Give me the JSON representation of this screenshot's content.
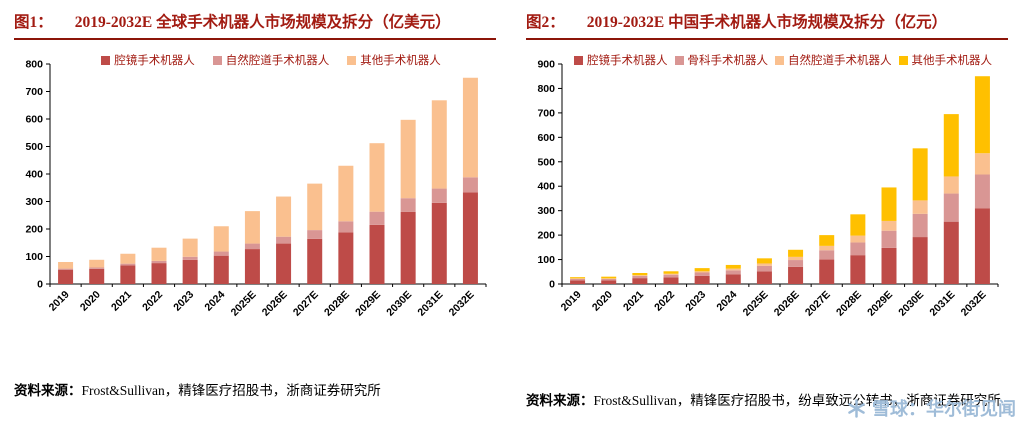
{
  "theme": {
    "title_red": "#A21B12",
    "rule_red": "#8C1509",
    "axis_black": "#000000",
    "watermark_blue": "#9FBCD8",
    "background": "#FFFFFF"
  },
  "watermark": {
    "icon": "snowflake-logo",
    "text": "雪球：华尔街见闻"
  },
  "chart_data": [
    {
      "type": "bar",
      "stacked": true,
      "figure_label": "图1：",
      "title": "2019-2032E 全球手术机器人市场规模及拆分（亿美元）",
      "source_label": "资料来源：",
      "source_text": "Frost&Sullivan，精锋医疗招股书，浙商证券研究所",
      "categories": [
        "2019",
        "2020",
        "2021",
        "2022",
        "2023",
        "2024",
        "2025E",
        "2026E",
        "2027E",
        "2028E",
        "2029E",
        "2030E",
        "2031E",
        "2032E"
      ],
      "series": [
        {
          "name": "腔镜手术机器人",
          "color": "#BE4B48",
          "values": [
            52,
            55,
            68,
            76,
            88,
            103,
            127,
            147,
            164,
            188,
            215,
            262,
            295,
            333
          ]
        },
        {
          "name": "自然腔道手术机器人",
          "color": "#D99694",
          "values": [
            4,
            5,
            6,
            8,
            11,
            15,
            20,
            25,
            32,
            40,
            48,
            50,
            52,
            55
          ]
        },
        {
          "name": "其他手术机器人",
          "color": "#FAC08F",
          "values": [
            24,
            28,
            36,
            48,
            66,
            92,
            118,
            146,
            169,
            202,
            249,
            285,
            321,
            362
          ]
        }
      ],
      "ylim": [
        0,
        800
      ],
      "ystep": 100,
      "grid": false,
      "legend_position": "top"
    },
    {
      "type": "bar",
      "stacked": true,
      "figure_label": "图2：",
      "title": "2019-2032E 中国手术机器人市场规模及拆分（亿元）",
      "source_label": "资料来源：",
      "source_text": "Frost&Sullivan，精锋医疗招股书，纷卓致远公转书，浙商证券研究所",
      "categories": [
        "2019",
        "2020",
        "2021",
        "2022",
        "2023",
        "2024",
        "2025E",
        "2026E",
        "2027E",
        "2028E",
        "2029E",
        "2030E",
        "2031E",
        "2032E"
      ],
      "series": [
        {
          "name": "腔镜手术机器人",
          "color": "#BE4B48",
          "values": [
            15,
            15,
            24,
            27,
            33,
            39,
            52,
            70,
            100,
            118,
            148,
            192,
            255,
            310
          ]
        },
        {
          "name": "骨科手术机器人",
          "color": "#D99694",
          "values": [
            6,
            6,
            9,
            11,
            14,
            17,
            22,
            28,
            38,
            52,
            70,
            95,
            115,
            138
          ]
        },
        {
          "name": "自然腔道手术机器人",
          "color": "#FAC08F",
          "values": [
            2,
            2,
            3,
            4,
            5,
            7,
            10,
            13,
            18,
            28,
            40,
            55,
            70,
            87
          ]
        },
        {
          "name": "其他手术机器人",
          "color": "#FFC000",
          "values": [
            5,
            7,
            9,
            10,
            13,
            15,
            21,
            29,
            44,
            87,
            137,
            213,
            255,
            315
          ]
        }
      ],
      "ylim": [
        0,
        900
      ],
      "ystep": 100,
      "grid": false,
      "legend_position": "top"
    }
  ]
}
